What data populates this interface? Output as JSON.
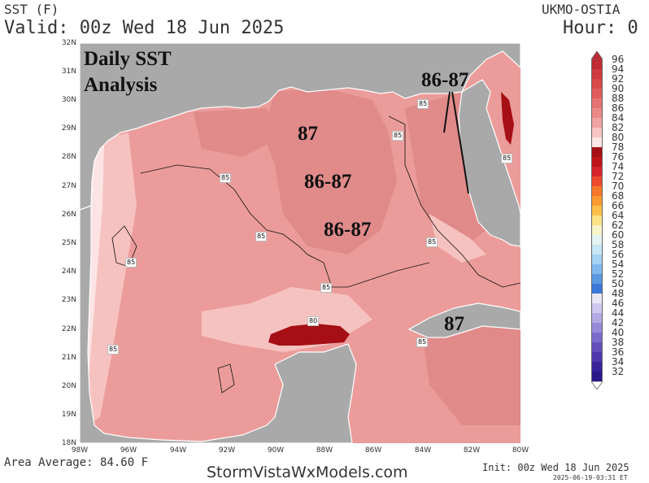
{
  "header": {
    "variable": "SST (F)",
    "valid": "Valid: 00z Wed 18 Jun 2025",
    "model": "UKMO-OSTIA",
    "hour": "Hour: 0"
  },
  "map": {
    "title_line1": "Daily SST",
    "title_line2": "Analysis",
    "lat_ticks": [
      "32N",
      "31N",
      "30N",
      "29N",
      "28N",
      "27N",
      "26N",
      "25N",
      "24N",
      "23N",
      "22N",
      "21N",
      "20N",
      "19N",
      "18N"
    ],
    "lon_ticks": [
      "98W",
      "96W",
      "94W",
      "92W",
      "90W",
      "88W",
      "86W",
      "84W",
      "82W",
      "80W"
    ],
    "annotations": [
      {
        "text": "86-87",
        "id": "annotation-florida-coast"
      },
      {
        "text": "87",
        "id": "annotation-north-gulf"
      },
      {
        "text": "86-87",
        "id": "annotation-central-gulf"
      },
      {
        "text": "86-87",
        "id": "annotation-east-central-gulf"
      },
      {
        "text": "87",
        "id": "annotation-cuba"
      }
    ],
    "contour_labels": [
      "85",
      "85",
      "85",
      "85",
      "85",
      "85",
      "85",
      "85",
      "85",
      "80",
      "85"
    ],
    "colors": {
      "land": "#a9a9a9",
      "sst_84_86": "#eb9c9a",
      "sst_86_88": "#e08a8a",
      "sst_82_84": "#f6c2c0",
      "sst_80_82": "#fde4e4",
      "sst_78_80": "#a50f15"
    }
  },
  "colorbar": {
    "labels": [
      "96",
      "94",
      "92",
      "90",
      "88",
      "86",
      "84",
      "82",
      "80",
      "78",
      "76",
      "74",
      "72",
      "70",
      "68",
      "66",
      "64",
      "62",
      "60",
      "58",
      "56",
      "54",
      "52",
      "50",
      "48",
      "46",
      "44",
      "42",
      "40",
      "38",
      "36",
      "34",
      "32"
    ],
    "colors": [
      "#c02b34",
      "#d03a3f",
      "#d84a4a",
      "#e05d5c",
      "#e57371",
      "#eb8a88",
      "#f1a3a1",
      "#f7c4c2",
      "#fde6e6",
      "#a50f15",
      "#c0141b",
      "#d6242a",
      "#ee4a2e",
      "#f6772a",
      "#fb9a2e",
      "#fdbf4a",
      "#fde384",
      "#f8f5c8",
      "#e4f4f2",
      "#c6e7f5",
      "#a4d3f3",
      "#7fb8ec",
      "#5a99e2",
      "#3a78d8",
      "#e9e6f6",
      "#cfc9ef",
      "#b3aae5",
      "#978ad9",
      "#7c6bcc",
      "#634fbd",
      "#4d37ab",
      "#3a239a",
      "#2a1788"
    ],
    "legend_order": [
      "96",
      "94",
      "92",
      "90",
      "88",
      "86",
      "84",
      "82",
      "80",
      "78",
      "76",
      "74",
      "72",
      "70",
      "68",
      "66",
      "64",
      "62",
      "60",
      "58",
      "56",
      "54",
      "52",
      "50",
      "48",
      "46",
      "44",
      "42",
      "40",
      "38",
      "36",
      "34",
      "32"
    ]
  },
  "footer": {
    "area_average": "Area Average: 84.60 F",
    "site": "StormVistaWxModels.com",
    "init": "Init: 00z Wed 18 Jun 2025",
    "generated": "2025-06-19-03:31 ET"
  }
}
